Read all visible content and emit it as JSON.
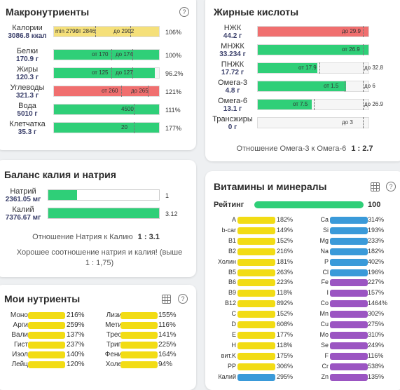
{
  "macro": {
    "title": "Макронутриенты",
    "rows": [
      {
        "name": "Калории",
        "value": "3086.8 ккал",
        "fill": "yellow",
        "fill_pct": 100,
        "min": "min 2790",
        "from": "от 2846",
        "to": "до 2902",
        "pct": "106%"
      },
      {
        "name": "Белки",
        "value": "170.9 г",
        "fill": "green",
        "fill_pct": 100,
        "from": "от 170",
        "to": "до 174",
        "pct": "100%"
      },
      {
        "name": "Жиры",
        "value": "120.3 г",
        "fill": "green",
        "fill_pct": 96,
        "from": "от 125",
        "to": "до 127",
        "pct": "96.2%"
      },
      {
        "name": "Углеводы",
        "value": "321.3 г",
        "fill": "red",
        "fill_pct": 100,
        "from": "от 260",
        "to": "до 265",
        "pct": "121%"
      },
      {
        "name": "Вода",
        "value": "5010 г",
        "fill": "green",
        "fill_pct": 100,
        "bar_label": "4500",
        "pct": "111%"
      },
      {
        "name": "Клетчатка",
        "value": "35.3 г",
        "fill": "green",
        "fill_pct": 100,
        "bar_label": "20",
        "pct": "177%"
      }
    ]
  },
  "fats": {
    "title": "Жирные кислоты",
    "rows": [
      {
        "name": "НЖК",
        "value": "44.2 г",
        "fill": "red",
        "fill_pct": 100,
        "to": "до 29.9"
      },
      {
        "name": "МНЖК",
        "value": "33.234 г",
        "fill": "green",
        "fill_pct": 100,
        "from": "от 26.9"
      },
      {
        "name": "ПНЖК",
        "value": "17.72 г",
        "fill": "green",
        "fill_pct": 54,
        "from": "от 17.9",
        "to": "до 32.8"
      },
      {
        "name": "Омега-3",
        "value": "4.8 г",
        "fill": "green",
        "fill_pct": 80,
        "from": "от 1.5",
        "to": "до 6"
      },
      {
        "name": "Омега-6",
        "value": "13.1 г",
        "fill": "green",
        "fill_pct": 49,
        "from": "от 7.5",
        "to": "до 26.9"
      },
      {
        "name": "Трансжиры",
        "value": "0 г",
        "fill": "green",
        "fill_pct": 0,
        "to": "до 3"
      }
    ],
    "ratio_label": "Отношение Омега-3 к Омега-6",
    "ratio_value": "1 : 2.7"
  },
  "kna": {
    "title": "Баланс калия и натрия",
    "rows": [
      {
        "name": "Натрий",
        "value": "2361.05 мг",
        "fill_pct": 26,
        "marker": "1"
      },
      {
        "name": "Калий",
        "value": "7376.67 мг",
        "fill_pct": 100,
        "marker": "3.12"
      }
    ],
    "ratio_label": "Отношение Натрия к Калию",
    "ratio_value": "1 : 3.1",
    "comment": "Хорошее соотношение натрия и калия! (выше 1 : 1,75)"
  },
  "mine": {
    "title": "Мои нутриенты",
    "left": [
      {
        "name": "Моно",
        "pct": "216%"
      },
      {
        "name": "Арги",
        "pct": "259%"
      },
      {
        "name": "Вали",
        "pct": "137%"
      },
      {
        "name": "Гист",
        "pct": "237%"
      },
      {
        "name": "Изол",
        "pct": "140%"
      },
      {
        "name": "Лейц",
        "pct": "120%"
      }
    ],
    "right": [
      {
        "name": "Лизи",
        "pct": "155%"
      },
      {
        "name": "Мети",
        "pct": "116%"
      },
      {
        "name": "Трео",
        "pct": "141%"
      },
      {
        "name": "Трип",
        "pct": "225%"
      },
      {
        "name": "Фени",
        "pct": "164%"
      },
      {
        "name": "Холе",
        "pct": "94%"
      }
    ]
  },
  "vit": {
    "title": "Витамины и минералы",
    "rating_label": "Рейтинг",
    "rating_value": "100",
    "rating_pct": 100,
    "left": [
      {
        "name": "A",
        "pct": "182%",
        "color": "yellow"
      },
      {
        "name": "b-car",
        "pct": "149%",
        "color": "yellow"
      },
      {
        "name": "B1",
        "pct": "152%",
        "color": "yellow"
      },
      {
        "name": "B2",
        "pct": "216%",
        "color": "yellow"
      },
      {
        "name": "Холин",
        "pct": "181%",
        "color": "yellow"
      },
      {
        "name": "B5",
        "pct": "263%",
        "color": "yellow"
      },
      {
        "name": "B6",
        "pct": "223%",
        "color": "yellow"
      },
      {
        "name": "B9",
        "pct": "118%",
        "color": "yellow"
      },
      {
        "name": "B12",
        "pct": "892%",
        "color": "yellow"
      },
      {
        "name": "C",
        "pct": "152%",
        "color": "yellow"
      },
      {
        "name": "D",
        "pct": "608%",
        "color": "yellow"
      },
      {
        "name": "E",
        "pct": "177%",
        "color": "yellow"
      },
      {
        "name": "H",
        "pct": "118%",
        "color": "yellow"
      },
      {
        "name": "вит.K",
        "pct": "175%",
        "color": "yellow"
      },
      {
        "name": "PP",
        "pct": "306%",
        "color": "yellow"
      },
      {
        "name": "Калий",
        "pct": "295%",
        "color": "blue"
      }
    ],
    "right": [
      {
        "name": "Ca",
        "pct": "314%",
        "color": "blue"
      },
      {
        "name": "Si",
        "pct": "193%",
        "color": "blue"
      },
      {
        "name": "Mg",
        "pct": "233%",
        "color": "blue"
      },
      {
        "name": "Na",
        "pct": "182%",
        "color": "blue"
      },
      {
        "name": "P",
        "pct": "402%",
        "color": "blue"
      },
      {
        "name": "Cl",
        "pct": "196%",
        "color": "blue"
      },
      {
        "name": "Fe",
        "pct": "227%",
        "color": "purple"
      },
      {
        "name": "I",
        "pct": "157%",
        "color": "purple"
      },
      {
        "name": "Co",
        "pct": "1464%",
        "color": "purple"
      },
      {
        "name": "Mn",
        "pct": "302%",
        "color": "purple"
      },
      {
        "name": "Cu",
        "pct": "275%",
        "color": "purple"
      },
      {
        "name": "Mo",
        "pct": "310%",
        "color": "purple"
      },
      {
        "name": "Se",
        "pct": "249%",
        "color": "purple"
      },
      {
        "name": "F",
        "pct": "116%",
        "color": "purple"
      },
      {
        "name": "Cr",
        "pct": "538%",
        "color": "purple"
      },
      {
        "name": "Zn",
        "pct": "135%",
        "color": "purple"
      }
    ]
  },
  "colors": {
    "green": "#2fcf78",
    "red": "#f06f6f",
    "yellow": "#f5e07a",
    "vit_yellow": "#f2dc14",
    "blue": "#3a9ad9",
    "purple": "#9b55c2"
  }
}
